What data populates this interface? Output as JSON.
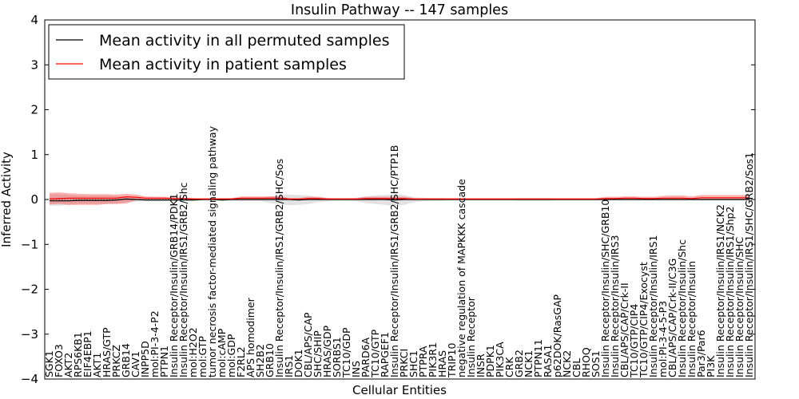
{
  "chart_data": {
    "type": "line",
    "title": "Insulin Pathway -- 147 samples",
    "xlabel": "Cellular Entities",
    "ylabel": "Inferred Activity",
    "ylim": [
      -4,
      4
    ],
    "yticks": [
      "4",
      "3",
      "2",
      "1",
      "0",
      "−1",
      "−2",
      "−3",
      "−4"
    ],
    "grid": false,
    "legend_position": "top-left",
    "categories": [
      "SGK1",
      "FOXO3",
      "AKT2",
      "RPS6KB1",
      "EIF4EBP1",
      "AKT1",
      "HRAS/GTP",
      "PRKCZ",
      "GRB14",
      "CAV1",
      "INPP5D",
      "mol:PI-3-4-P2",
      "PTPN1",
      "Insulin Receptor/Insulin/GRB14/PDK1",
      "Insulin Receptor/Insulin/IRS1/GRB2/Shc",
      "mol:H2O2",
      "mol:GTP",
      "tumor necrosis factor-mediated signaling pathway",
      "mol:cAMP",
      "mol:GDP",
      "F2RL2",
      "APS homodimer",
      "SH2B2",
      "GRB10",
      "Insulin Receptor/Insulin/IRS1/GRB2/SHC/Sos",
      "IRS1",
      "DOK1",
      "CBL/APS/CAP",
      "SHC/SHIP",
      "HRAS/GDP",
      "SORBS1",
      "TC10/GDP",
      "INS",
      "PARD6A",
      "TC10/GTP",
      "RAPGEF1",
      "Insulin Receptor/Insulin/IRS1/GRB2/SHC/PTP1B",
      "PRKCI",
      "SHC1",
      "PTPRA",
      "PIK3R1",
      "HRAS",
      "TRIP10",
      "negative regulation of MAPKKK cascade",
      "Insulin Receptor",
      "INSR",
      "PDPK1",
      "PIK3CA",
      "CRK",
      "GRB2",
      "NCK1",
      "PTPN11",
      "RASA1",
      "p62DOK/RasGAP",
      "NCK2",
      "CBL",
      "RHOQ",
      "SOS1",
      "Insulin Receptor/Insulin/SHC/GRB10",
      "Insulin Receptor/Insulin/IRS3",
      "CBL/APS/CAP/Crk-II",
      "TC10/GTP/CIP4",
      "TC10/GTP/CIP4/Exocyst",
      "Insulin Receptor/Insulin/IRS1",
      "mol:PI-3-4-5-P3",
      "CBL/APS/CAP/Crk-II/C3G",
      "Insulin Receptor/Insulin/Shc",
      "Insulin Receptor/Insulin",
      "Par3/Par6",
      "PI3K",
      "Insulin Receptor/Insulin/IRS1/NCK2",
      "Insulin Receptor/Insulin/IRS1/Shp2",
      "Insulin Receptor/Insulin/SHC",
      "Insulin Receptor/Insulin/IRS1/SHC/GRB2/Sos1"
    ],
    "series": [
      {
        "name": "Mean activity in all permuted samples",
        "color": "#000000",
        "values": [
          -0.03,
          -0.03,
          -0.03,
          -0.02,
          -0.02,
          -0.02,
          -0.02,
          -0.01,
          0.01,
          0.0,
          -0.01,
          -0.01,
          -0.01,
          -0.01,
          -0.01,
          -0.01,
          0.0,
          0.0,
          -0.01,
          0.0,
          0.0,
          0.0,
          0.0,
          0.0,
          0.0,
          0.0,
          -0.01,
          0.0,
          0.0,
          0.0,
          0.0,
          0.0,
          0.0,
          0.0,
          0.0,
          0.0,
          -0.01,
          0.0,
          0.0,
          0.0,
          0.0,
          0.0,
          0.0,
          0.0,
          0.0,
          0.0,
          0.0,
          0.0,
          0.0,
          0.0,
          0.0,
          0.0,
          0.0,
          0.0,
          0.0,
          0.0,
          0.0,
          0.0,
          0.0,
          0.0,
          0.0,
          0.0,
          0.0,
          0.0,
          0.0,
          0.0,
          0.0,
          0.0,
          0.0,
          0.0,
          0.0,
          0.0,
          0.0,
          0.0
        ],
        "lower": [
          -0.14,
          -0.14,
          -0.12,
          -0.1,
          -0.1,
          -0.1,
          -0.1,
          -0.09,
          -0.06,
          -0.05,
          -0.04,
          -0.04,
          -0.04,
          -0.03,
          -0.03,
          -0.03,
          -0.02,
          -0.02,
          -0.03,
          -0.03,
          -0.04,
          -0.04,
          -0.04,
          -0.08,
          -0.1,
          -0.13,
          -0.12,
          -0.1,
          -0.06,
          -0.04,
          -0.03,
          -0.03,
          -0.04,
          -0.08,
          -0.1,
          -0.12,
          -0.14,
          -0.12,
          -0.06,
          -0.04,
          -0.03,
          -0.03,
          -0.02,
          -0.02,
          -0.02,
          -0.02,
          -0.02,
          -0.02,
          -0.02,
          -0.03,
          -0.03,
          -0.03,
          -0.03,
          -0.02,
          -0.02,
          -0.02,
          -0.02,
          -0.02,
          -0.02,
          -0.02,
          -0.02,
          -0.02,
          -0.02,
          -0.02,
          -0.02,
          -0.02,
          -0.02,
          -0.02,
          -0.02,
          -0.02,
          -0.02,
          -0.02,
          -0.02,
          -0.02
        ],
        "upper": [
          0.12,
          0.12,
          0.1,
          0.09,
          0.09,
          0.09,
          0.09,
          0.08,
          0.07,
          0.05,
          0.04,
          0.04,
          0.04,
          0.03,
          0.03,
          0.03,
          0.02,
          0.02,
          0.03,
          0.03,
          0.04,
          0.04,
          0.04,
          0.07,
          0.09,
          0.11,
          0.1,
          0.09,
          0.05,
          0.04,
          0.03,
          0.03,
          0.04,
          0.07,
          0.09,
          0.1,
          0.12,
          0.1,
          0.05,
          0.04,
          0.03,
          0.03,
          0.02,
          0.02,
          0.02,
          0.02,
          0.02,
          0.02,
          0.02,
          0.03,
          0.03,
          0.03,
          0.03,
          0.02,
          0.02,
          0.02,
          0.02,
          0.02,
          0.02,
          0.02,
          0.02,
          0.02,
          0.02,
          0.02,
          0.02,
          0.02,
          0.02,
          0.02,
          0.02,
          0.02,
          0.02,
          0.02,
          0.02,
          0.02
        ]
      },
      {
        "name": "Mean activity in patient samples",
        "color": "#ff0000",
        "values": [
          0.01,
          0.02,
          0.03,
          0.03,
          0.03,
          0.03,
          0.03,
          0.03,
          0.06,
          0.05,
          0.03,
          0.03,
          0.03,
          0.02,
          0.02,
          0.01,
          0.01,
          0.01,
          0.01,
          0.01,
          0.03,
          0.03,
          0.03,
          0.03,
          0.03,
          0.01,
          0.01,
          0.02,
          0.02,
          0.01,
          0.01,
          0.01,
          0.01,
          0.02,
          0.02,
          0.02,
          0.02,
          0.02,
          0.01,
          0.01,
          0.01,
          0.01,
          0.01,
          0.01,
          0.01,
          0.01,
          0.01,
          0.01,
          0.01,
          0.01,
          0.01,
          0.01,
          0.01,
          0.01,
          0.01,
          0.01,
          0.01,
          0.01,
          0.02,
          0.02,
          0.03,
          0.03,
          0.02,
          0.02,
          0.03,
          0.03,
          0.03,
          0.02,
          0.04,
          0.04,
          0.04,
          0.04,
          0.04,
          0.04
        ],
        "lower": [
          -0.11,
          -0.1,
          -0.12,
          -0.12,
          -0.12,
          -0.12,
          -0.1,
          -0.1,
          -0.09,
          -0.02,
          -0.01,
          -0.01,
          -0.01,
          -0.01,
          -0.01,
          -0.01,
          -0.01,
          -0.01,
          -0.01,
          -0.01,
          -0.01,
          -0.01,
          -0.01,
          -0.01,
          -0.01,
          -0.01,
          -0.01,
          -0.01,
          -0.01,
          -0.01,
          -0.01,
          -0.01,
          -0.01,
          -0.01,
          -0.01,
          -0.01,
          -0.01,
          -0.01,
          -0.01,
          -0.01,
          -0.01,
          -0.01,
          -0.01,
          -0.01,
          -0.01,
          -0.01,
          -0.01,
          -0.01,
          -0.01,
          -0.01,
          -0.01,
          -0.01,
          -0.01,
          -0.01,
          -0.01,
          -0.01,
          -0.01,
          -0.01,
          -0.01,
          -0.01,
          -0.01,
          -0.01,
          -0.01,
          -0.01,
          -0.01,
          -0.01,
          -0.01,
          -0.01,
          -0.01,
          -0.01,
          -0.01,
          -0.01,
          -0.01,
          -0.01
        ],
        "upper": [
          0.15,
          0.16,
          0.14,
          0.13,
          0.12,
          0.12,
          0.12,
          0.11,
          0.13,
          0.11,
          0.07,
          0.06,
          0.06,
          0.05,
          0.04,
          0.03,
          0.03,
          0.03,
          0.03,
          0.03,
          0.07,
          0.07,
          0.07,
          0.07,
          0.07,
          0.03,
          0.03,
          0.06,
          0.06,
          0.03,
          0.03,
          0.03,
          0.03,
          0.06,
          0.06,
          0.06,
          0.06,
          0.06,
          0.03,
          0.03,
          0.03,
          0.03,
          0.03,
          0.03,
          0.03,
          0.03,
          0.03,
          0.03,
          0.03,
          0.03,
          0.03,
          0.03,
          0.03,
          0.03,
          0.03,
          0.03,
          0.03,
          0.03,
          0.06,
          0.06,
          0.07,
          0.07,
          0.06,
          0.06,
          0.08,
          0.09,
          0.09,
          0.07,
          0.1,
          0.1,
          0.1,
          0.1,
          0.1,
          0.1
        ]
      }
    ]
  }
}
